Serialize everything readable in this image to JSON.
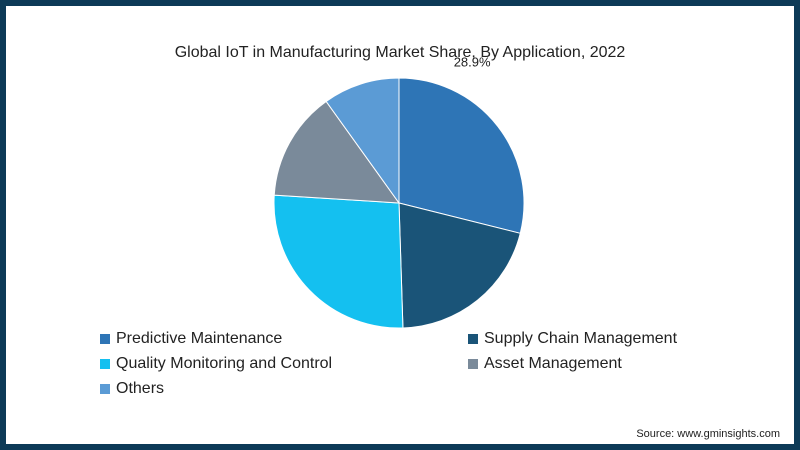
{
  "chart_data": {
    "type": "pie",
    "title": "Global IoT in Manufacturing Market Share, By Application, 2022",
    "slices": [
      {
        "label": "Predictive Maintenance",
        "value": 28.9,
        "color": "#2e75b6",
        "data_label": "28.9%"
      },
      {
        "label": "Supply Chain Management",
        "value": 20.6,
        "color": "#1a5478",
        "data_label": ""
      },
      {
        "label": "Quality Monitoring and Control",
        "value": 26.5,
        "color": "#14c0f0",
        "data_label": ""
      },
      {
        "label": "Asset Management",
        "value": 14.1,
        "color": "#7a8a9a",
        "data_label": ""
      },
      {
        "label": "Others",
        "value": 9.9,
        "color": "#5b9bd5",
        "data_label": ""
      }
    ],
    "legend_placement": "bottom"
  },
  "source": "Source: www.gminsights.com",
  "colors": {
    "border": "#0d3a57",
    "background": "#ffffff"
  }
}
